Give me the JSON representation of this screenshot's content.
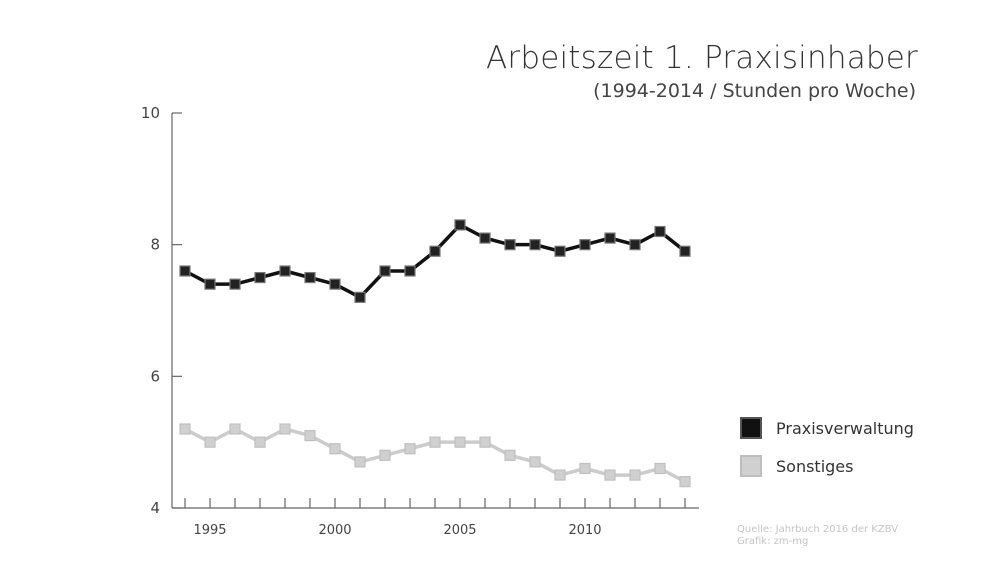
{
  "chart_data": {
    "type": "line",
    "title": "Arbeitszeit 1. Praxisinhaber",
    "subtitle": "(1994-2014 / Stunden pro Woche)",
    "x": [
      1994,
      1995,
      1996,
      1997,
      1998,
      1999,
      2000,
      2001,
      2002,
      2003,
      2004,
      2005,
      2006,
      2007,
      2008,
      2009,
      2010,
      2011,
      2012,
      2013,
      2014
    ],
    "x_tick_labels": [
      "1995",
      "2000",
      "2005",
      "2010"
    ],
    "x_tick_values": [
      1995,
      2000,
      2005,
      2010
    ],
    "ylim": [
      4,
      10
    ],
    "y_ticks": [
      4,
      6,
      8,
      10
    ],
    "grid": false,
    "legend_position": "right",
    "series": [
      {
        "name": "Praxisverwaltung",
        "color": "#111111",
        "values": [
          7.6,
          7.4,
          7.4,
          7.5,
          7.6,
          7.5,
          7.4,
          7.2,
          7.6,
          7.6,
          7.9,
          8.3,
          8.1,
          8.0,
          8.0,
          7.9,
          8.0,
          8.1,
          8.0,
          8.2,
          7.9
        ]
      },
      {
        "name": "Sonstiges",
        "color": "#cccccc",
        "values": [
          5.2,
          5.0,
          5.2,
          5.0,
          5.2,
          5.1,
          4.9,
          4.7,
          4.8,
          4.9,
          5.0,
          5.0,
          5.0,
          4.8,
          4.7,
          4.5,
          4.6,
          4.5,
          4.5,
          4.6,
          4.4
        ]
      }
    ],
    "source_lines": [
      "Quelle: Jahrbuch 2016 der KZBV",
      "Grafik: zm-mg"
    ]
  }
}
